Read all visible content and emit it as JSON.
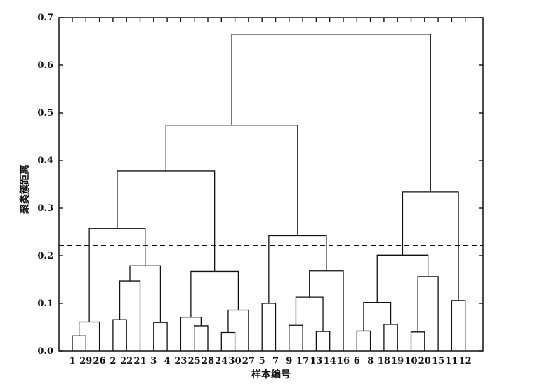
{
  "chart_data": {
    "type": "dendrogram",
    "xlabel": "样本编号",
    "ylabel": "聚类簇距离",
    "ylim": [
      0,
      0.7
    ],
    "yticks": [
      0.0,
      0.1,
      0.2,
      0.3,
      0.4,
      0.5,
      0.6,
      0.7
    ],
    "ytick_labels": [
      "0.0",
      "0.1",
      "0.2",
      "0.3",
      "0.4",
      "0.5",
      "0.6",
      "0.7"
    ],
    "leaves": [
      "1",
      "29",
      "26",
      "2",
      "22",
      "21",
      "3",
      "4",
      "23",
      "25",
      "28",
      "24",
      "30",
      "27",
      "5",
      "7",
      "9",
      "17",
      "13",
      "14",
      "16",
      "6",
      "8",
      "18",
      "19",
      "10",
      "20",
      "15",
      "11",
      "12"
    ],
    "threshold": 0.222,
    "merges": [
      {
        "left": "L1",
        "right": "L29",
        "height": 0.032
      },
      {
        "left": "N0",
        "right": "L26",
        "height": 0.061
      },
      {
        "left": "L2",
        "right": "L22",
        "height": 0.066
      },
      {
        "left": "N2",
        "right": "L21",
        "height": 0.147
      },
      {
        "left": "L3",
        "right": "L4",
        "height": 0.06
      },
      {
        "left": "N3",
        "right": "N4",
        "height": 0.179
      },
      {
        "left": "N1",
        "right": "N5",
        "height": 0.257
      },
      {
        "left": "L25",
        "right": "L28",
        "height": 0.053
      },
      {
        "left": "L23",
        "right": "N7",
        "height": 0.071
      },
      {
        "left": "L24",
        "right": "L30",
        "height": 0.039
      },
      {
        "left": "N9",
        "right": "L27",
        "height": 0.086
      },
      {
        "left": "N8",
        "right": "N10",
        "height": 0.167
      },
      {
        "left": "N6",
        "right": "N11",
        "height": 0.378
      },
      {
        "left": "L5",
        "right": "L7",
        "height": 0.1
      },
      {
        "left": "L9",
        "right": "L17",
        "height": 0.054
      },
      {
        "left": "L13",
        "right": "L14",
        "height": 0.041
      },
      {
        "left": "N14",
        "right": "N15",
        "height": 0.113
      },
      {
        "left": "N16",
        "right": "L16",
        "height": 0.168
      },
      {
        "left": "N13",
        "right": "N17",
        "height": 0.242
      },
      {
        "left": "N12",
        "right": "N18",
        "height": 0.474
      },
      {
        "left": "L6",
        "right": "L8",
        "height": 0.042
      },
      {
        "left": "L18",
        "right": "L19",
        "height": 0.056
      },
      {
        "left": "N20",
        "right": "N21",
        "height": 0.102
      },
      {
        "left": "L10",
        "right": "L20",
        "height": 0.04
      },
      {
        "left": "N23",
        "right": "L15",
        "height": 0.156
      },
      {
        "left": "N22",
        "right": "N24",
        "height": 0.201
      },
      {
        "left": "L11",
        "right": "L12",
        "height": 0.106
      },
      {
        "left": "N25",
        "right": "N26",
        "height": 0.334
      },
      {
        "left": "N19",
        "right": "N27",
        "height": 0.665
      }
    ]
  }
}
